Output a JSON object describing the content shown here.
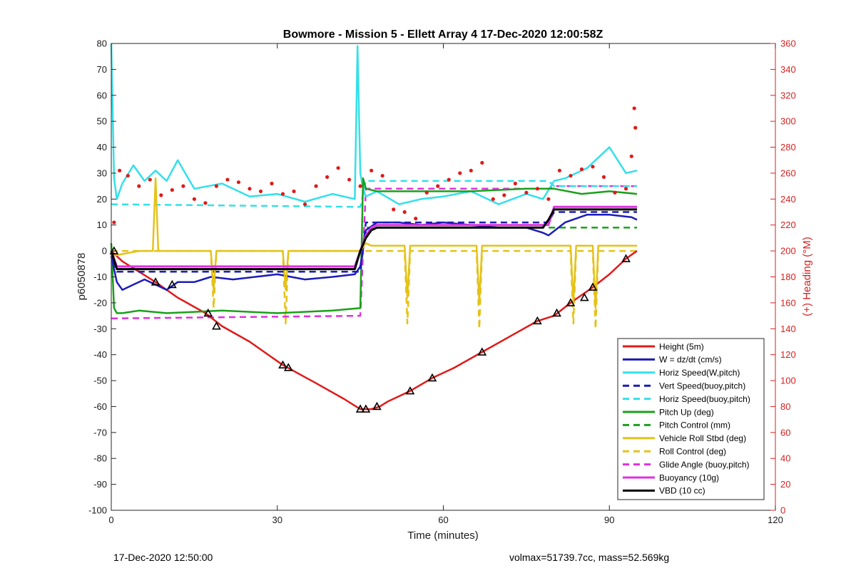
{
  "chart_data": {
    "type": "line",
    "title": "Bowmore - Mission 5 - Ellett Array 4 17-Dec-2020 12:00:58Z",
    "xlabel": "Time (minutes)",
    "ylabel": "p6050878",
    "y2label": "(+) Heading (°M)",
    "xlim": [
      0,
      120
    ],
    "ylim": [
      -100,
      80
    ],
    "y2lim": [
      0,
      360
    ],
    "xticks": [
      "0",
      "30",
      "60",
      "90",
      "120"
    ],
    "yticks": [
      "80",
      "70",
      "60",
      "50",
      "40",
      "30",
      "20",
      "10",
      "0",
      "-10",
      "-20",
      "-30",
      "-40",
      "-50",
      "-60",
      "-70",
      "-80",
      "-90",
      "-100"
    ],
    "y2ticks": [
      "360",
      "340",
      "320",
      "300",
      "280",
      "260",
      "240",
      "220",
      "200",
      "180",
      "160",
      "140",
      "120",
      "100",
      "80",
      "60",
      "40",
      "20",
      "0"
    ],
    "grid": false,
    "legend_position": "lower-right",
    "series": [
      {
        "name": "Height (5m)",
        "color": "#e01a1a",
        "style": "solid",
        "x": [
          0,
          2,
          5,
          8,
          12,
          17,
          20,
          25,
          31,
          37,
          42,
          45,
          46,
          47,
          48.5,
          50,
          54,
          58,
          62,
          67,
          72,
          77,
          80,
          83,
          87,
          90,
          93,
          95
        ],
        "y": [
          0,
          -4,
          -8,
          -12,
          -18,
          -24,
          -29,
          -35,
          -44,
          -51,
          -57,
          -61,
          -61,
          -61,
          -60,
          -58,
          -54,
          -49,
          -45,
          -39,
          -33,
          -27,
          -25,
          -20,
          -14,
          -9,
          -3,
          0
        ]
      },
      {
        "name": "W = dz/dt (cm/s)",
        "color": "#1c1cb8",
        "style": "solid",
        "x": [
          0,
          1,
          2,
          4,
          6,
          8,
          10,
          12,
          15,
          18,
          22,
          26,
          30,
          35,
          40,
          44,
          45,
          46,
          48,
          52,
          56,
          60,
          65,
          70,
          75,
          78,
          79,
          82,
          86,
          90,
          94,
          95
        ],
        "y": [
          -2,
          -12,
          -15,
          -13,
          -11,
          -13,
          -15,
          -12,
          -12,
          -10,
          -11,
          -10,
          -9,
          -11,
          -10,
          -9,
          -6,
          8,
          11,
          11,
          10,
          11,
          10,
          9,
          9,
          7,
          6,
          11,
          14,
          14,
          13,
          12
        ]
      },
      {
        "name": "Horiz Speed(W,pitch)",
        "color": "#33e0ea",
        "style": "solid",
        "x": [
          0,
          0.5,
          1,
          2,
          4,
          6,
          8,
          10,
          12,
          15,
          20,
          25,
          30,
          35,
          40,
          44,
          44.5,
          45,
          45.5,
          46,
          48,
          52,
          56,
          60,
          65,
          70,
          75,
          78,
          80,
          82,
          86,
          90,
          93,
          95
        ],
        "y": [
          80,
          28,
          20,
          26,
          33,
          27,
          31,
          27,
          35,
          24,
          26,
          21,
          22,
          19,
          22,
          20,
          79,
          30,
          24,
          21,
          23,
          18,
          20,
          21,
          23,
          18,
          22,
          20,
          27,
          28,
          32,
          40,
          30,
          31
        ]
      },
      {
        "name": "Vert Speed(buoy,pitch)",
        "color": "#1c1cb8",
        "style": "dashed",
        "x": [
          0,
          1,
          45,
          46,
          79,
          80,
          95
        ],
        "y": [
          0,
          -8,
          -8,
          11,
          11,
          15,
          15
        ]
      },
      {
        "name": "Horiz Speed(buoy,pitch)",
        "color": "#33e0ea",
        "style": "dashed",
        "x": [
          0,
          45,
          46,
          79,
          80,
          95
        ],
        "y": [
          18,
          17,
          27,
          27,
          25,
          25
        ]
      },
      {
        "name": "Pitch Up (deg)",
        "color": "#1aa01a",
        "style": "solid",
        "x": [
          0,
          0.5,
          1,
          2,
          5,
          10,
          20,
          30,
          40,
          45,
          45.5,
          46,
          48,
          55,
          65,
          75,
          80,
          85,
          90,
          95
        ],
        "y": [
          3,
          -22,
          -24,
          -24,
          -23,
          -24,
          -23,
          -24,
          -23,
          -22,
          28,
          24,
          23,
          23,
          23,
          24,
          24,
          22,
          23,
          22
        ]
      },
      {
        "name": "Pitch Control (mm)",
        "color": "#1aa01a",
        "style": "dashed",
        "x": [
          0,
          1,
          45,
          46,
          79,
          80,
          95
        ],
        "y": [
          0,
          -8,
          -8,
          9,
          9,
          9,
          9
        ]
      },
      {
        "name": "Vehicle Roll Stbd (deg)",
        "color": "#e5c21a",
        "style": "solid",
        "x": [
          0,
          5,
          7.5,
          8,
          8.5,
          10,
          18,
          18.5,
          19,
          31,
          31.5,
          32,
          44,
          45,
          46,
          47,
          53,
          53.5,
          54,
          66,
          66.5,
          67,
          76,
          83,
          83.5,
          84,
          87,
          87.5,
          88,
          95
        ],
        "y": [
          -2,
          0,
          0,
          28,
          0,
          0,
          0,
          -15,
          0,
          0,
          -15,
          0,
          0,
          0,
          3,
          2,
          2,
          -18,
          2,
          2,
          -20,
          2,
          2,
          2,
          -20,
          2,
          2,
          -22,
          2,
          2
        ]
      },
      {
        "name": "Roll Control (deg)",
        "color": "#e5c21a",
        "style": "dashed",
        "x": [
          0,
          18,
          18.5,
          19,
          31,
          31.5,
          32,
          53,
          53.5,
          54,
          66,
          66.5,
          67,
          83,
          83.5,
          84,
          87,
          87.5,
          88,
          95
        ],
        "y": [
          0,
          0,
          -22,
          0,
          0,
          -28,
          0,
          0,
          -28,
          0,
          0,
          -30,
          0,
          0,
          -28,
          0,
          0,
          -30,
          0,
          0
        ]
      },
      {
        "name": "Glide Angle (buoy,pitch)",
        "color": "#e030e0",
        "style": "dashed",
        "x": [
          0,
          1,
          45,
          46,
          79,
          80,
          95
        ],
        "y": [
          -26,
          -26,
          -25,
          24,
          24,
          25,
          25
        ]
      },
      {
        "name": "Buoyancy (10g)",
        "color": "#e030e0",
        "style": "solid",
        "x": [
          0,
          1,
          44,
          45,
          46,
          47,
          48,
          79,
          80,
          95
        ],
        "y": [
          0,
          -6,
          -6,
          0,
          6,
          9,
          10,
          10,
          17,
          17
        ]
      },
      {
        "name": "VBD (10 cc)",
        "color": "#000000",
        "style": "solid",
        "x": [
          0,
          1,
          44,
          45,
          46,
          47,
          48,
          78,
          79,
          80,
          95
        ],
        "y": [
          0,
          -7,
          -7,
          0,
          5,
          8,
          9,
          9,
          12,
          16,
          16
        ]
      }
    ],
    "heading_points": {
      "name": "(+) Heading (°M)",
      "color": "#e01a1a",
      "axis": "right",
      "x": [
        0.5,
        1.5,
        3,
        5,
        7,
        9,
        11,
        13,
        15,
        17,
        19,
        21,
        23,
        25,
        27,
        29,
        31,
        33,
        35,
        37,
        39,
        41,
        43,
        45,
        47,
        49,
        51,
        53,
        55,
        57,
        59,
        61,
        63,
        65,
        67,
        69,
        71,
        73,
        75,
        77,
        79,
        81,
        83,
        85,
        87,
        89,
        91,
        93,
        94,
        94.5,
        94.7
      ],
      "y": [
        222,
        262,
        258,
        250,
        255,
        243,
        247,
        250,
        240,
        237,
        250,
        255,
        253,
        248,
        246,
        252,
        244,
        246,
        236,
        250,
        257,
        264,
        255,
        250,
        262,
        258,
        232,
        230,
        225,
        245,
        250,
        255,
        260,
        262,
        268,
        240,
        243,
        252,
        245,
        248,
        240,
        262,
        258,
        263,
        265,
        257,
        245,
        248,
        273,
        310,
        295
      ]
    },
    "markers": {
      "x": [
        0.5,
        8,
        11,
        17.5,
        19,
        31,
        32,
        45,
        46,
        48,
        54,
        58,
        67,
        77,
        80.5,
        83,
        85.5,
        87,
        93
      ],
      "y": [
        0,
        -12,
        -13,
        -24,
        -29,
        -44,
        -45,
        -61,
        -61,
        -60,
        -54,
        -49,
        -39,
        -27,
        -24,
        -20,
        -18,
        -14,
        -3
      ]
    }
  },
  "footer": {
    "left": "17-Dec-2020 12:50:00",
    "right": "volmax=51739.7cc, mass=52.569kg"
  }
}
